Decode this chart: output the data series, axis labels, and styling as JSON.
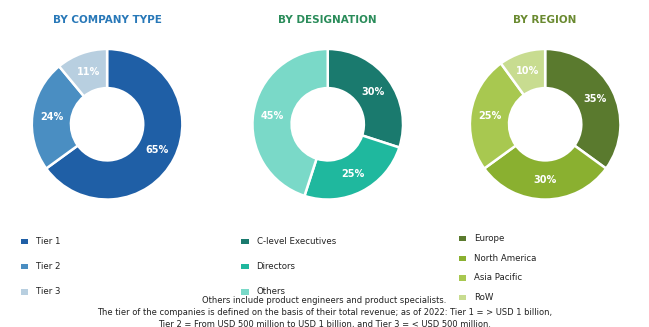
{
  "chart1": {
    "title": "BY COMPANY TYPE",
    "values": [
      65,
      24,
      11
    ],
    "labels": [
      "65%",
      "24%",
      "11%"
    ],
    "colors": [
      "#1f5fa6",
      "#4a8ec2",
      "#b8cfe0"
    ],
    "legend": [
      "Tier 1",
      "Tier 2",
      "Tier 3"
    ],
    "startangle": 90,
    "counterclock": false
  },
  "chart2": {
    "title": "BY DESIGNATION",
    "values": [
      30,
      25,
      45
    ],
    "labels": [
      "30%",
      "25%",
      "45%"
    ],
    "colors": [
      "#1a7a6e",
      "#1fb89e",
      "#7ad9c8"
    ],
    "legend": [
      "C-level Executives",
      "Directors",
      "Others"
    ],
    "startangle": 90,
    "counterclock": false
  },
  "chart3": {
    "title": "BY REGION",
    "values": [
      35,
      30,
      25,
      10
    ],
    "labels": [
      "35%",
      "30%",
      "25%",
      "10%"
    ],
    "colors": [
      "#5a7a2e",
      "#8ab030",
      "#a8c850",
      "#c8dc90"
    ],
    "legend": [
      "Europe",
      "North America",
      "Asia Pacific",
      "RoW"
    ],
    "startangle": 90,
    "counterclock": false
  },
  "footnote1": "Others include product engineers and product specialists.",
  "footnote2": "The tier of the companies is defined on the basis of their total revenue; as of 2022: Tier 1 = > USD 1 billion,",
  "footnote3": "Tier 2 = From USD 500 million to USD 1 billion, and Tier 3 = < USD 500 million.",
  "title_color": "#2878b8",
  "title2_color": "#2a8c5a",
  "title3_color": "#6a8a30",
  "bg_color": "#ffffff"
}
